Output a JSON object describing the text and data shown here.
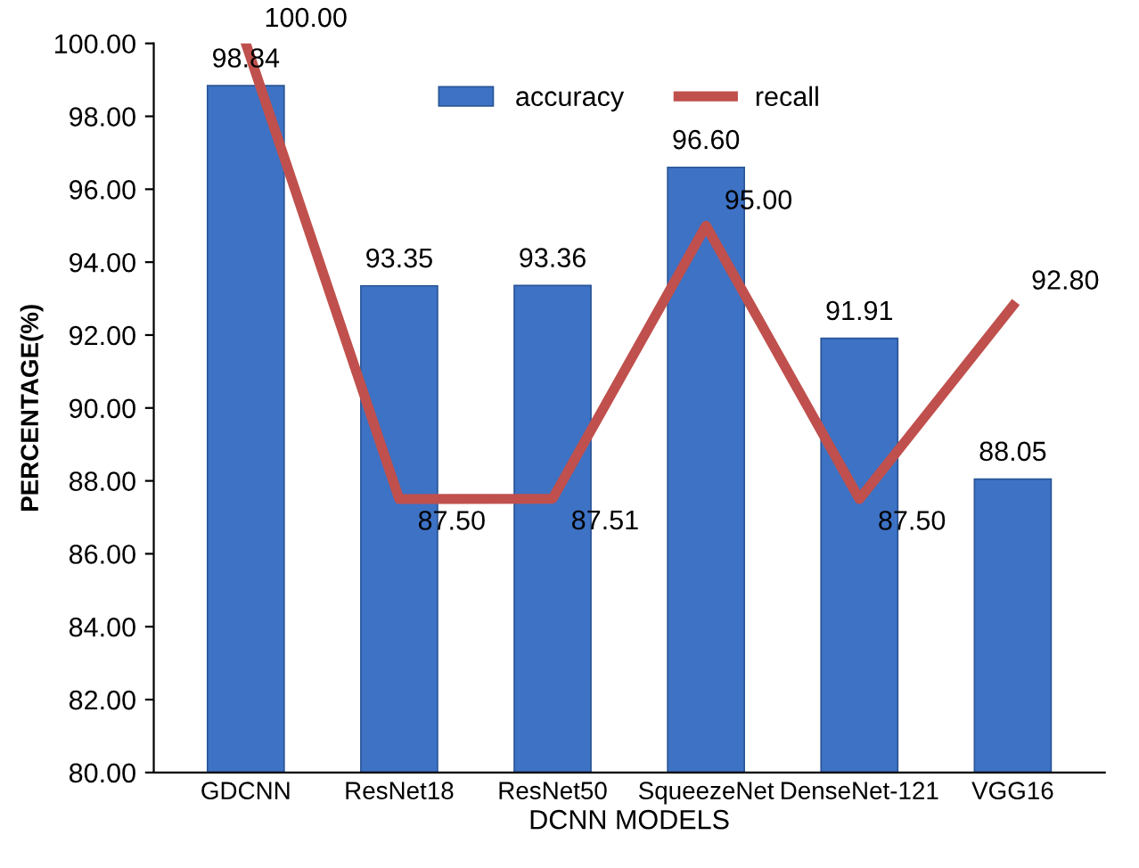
{
  "chart_data": {
    "type": "bar",
    "xlabel": "DCNN MODELS",
    "ylabel": "PERCENTAGE(%)",
    "categories": [
      "GDCNN",
      "ResNet18",
      "ResNet50",
      "SqueezeNet",
      "DenseNet-121",
      "VGG16"
    ],
    "series": [
      {
        "name": "accuracy",
        "color": "#3d72c4",
        "values": [
          98.84,
          93.35,
          93.36,
          96.6,
          91.91,
          88.05
        ],
        "value_labels": [
          "98.84",
          "93.35",
          "93.36",
          "96.60",
          "91.91",
          "88.05"
        ]
      },
      {
        "name": "recall",
        "type": "line",
        "color": "#c0504d",
        "values": [
          100,
          87.5,
          87.51,
          95,
          87.5,
          92.8
        ],
        "value_labels": [
          "100.00",
          "87.50",
          "87.51",
          "95.00",
          "87.50",
          "92.80"
        ]
      }
    ],
    "ylim": [
      80,
      100
    ],
    "yticks": [
      {
        "value": 80,
        "label": "80.00"
      },
      {
        "value": 82,
        "label": "82.00"
      },
      {
        "value": 84,
        "label": "84.00"
      },
      {
        "value": 86,
        "label": "86.00"
      },
      {
        "value": 88,
        "label": "88.00"
      },
      {
        "value": 90,
        "label": "90.00"
      },
      {
        "value": 92,
        "label": "92.00"
      },
      {
        "value": 94,
        "label": "94.00"
      },
      {
        "value": 96,
        "label": "96.00"
      },
      {
        "value": 98,
        "label": "98.00"
      },
      {
        "value": 100,
        "label": "100.00"
      }
    ],
    "grid": false,
    "legend": "top",
    "marker": "none",
    "line_style": "solid"
  }
}
